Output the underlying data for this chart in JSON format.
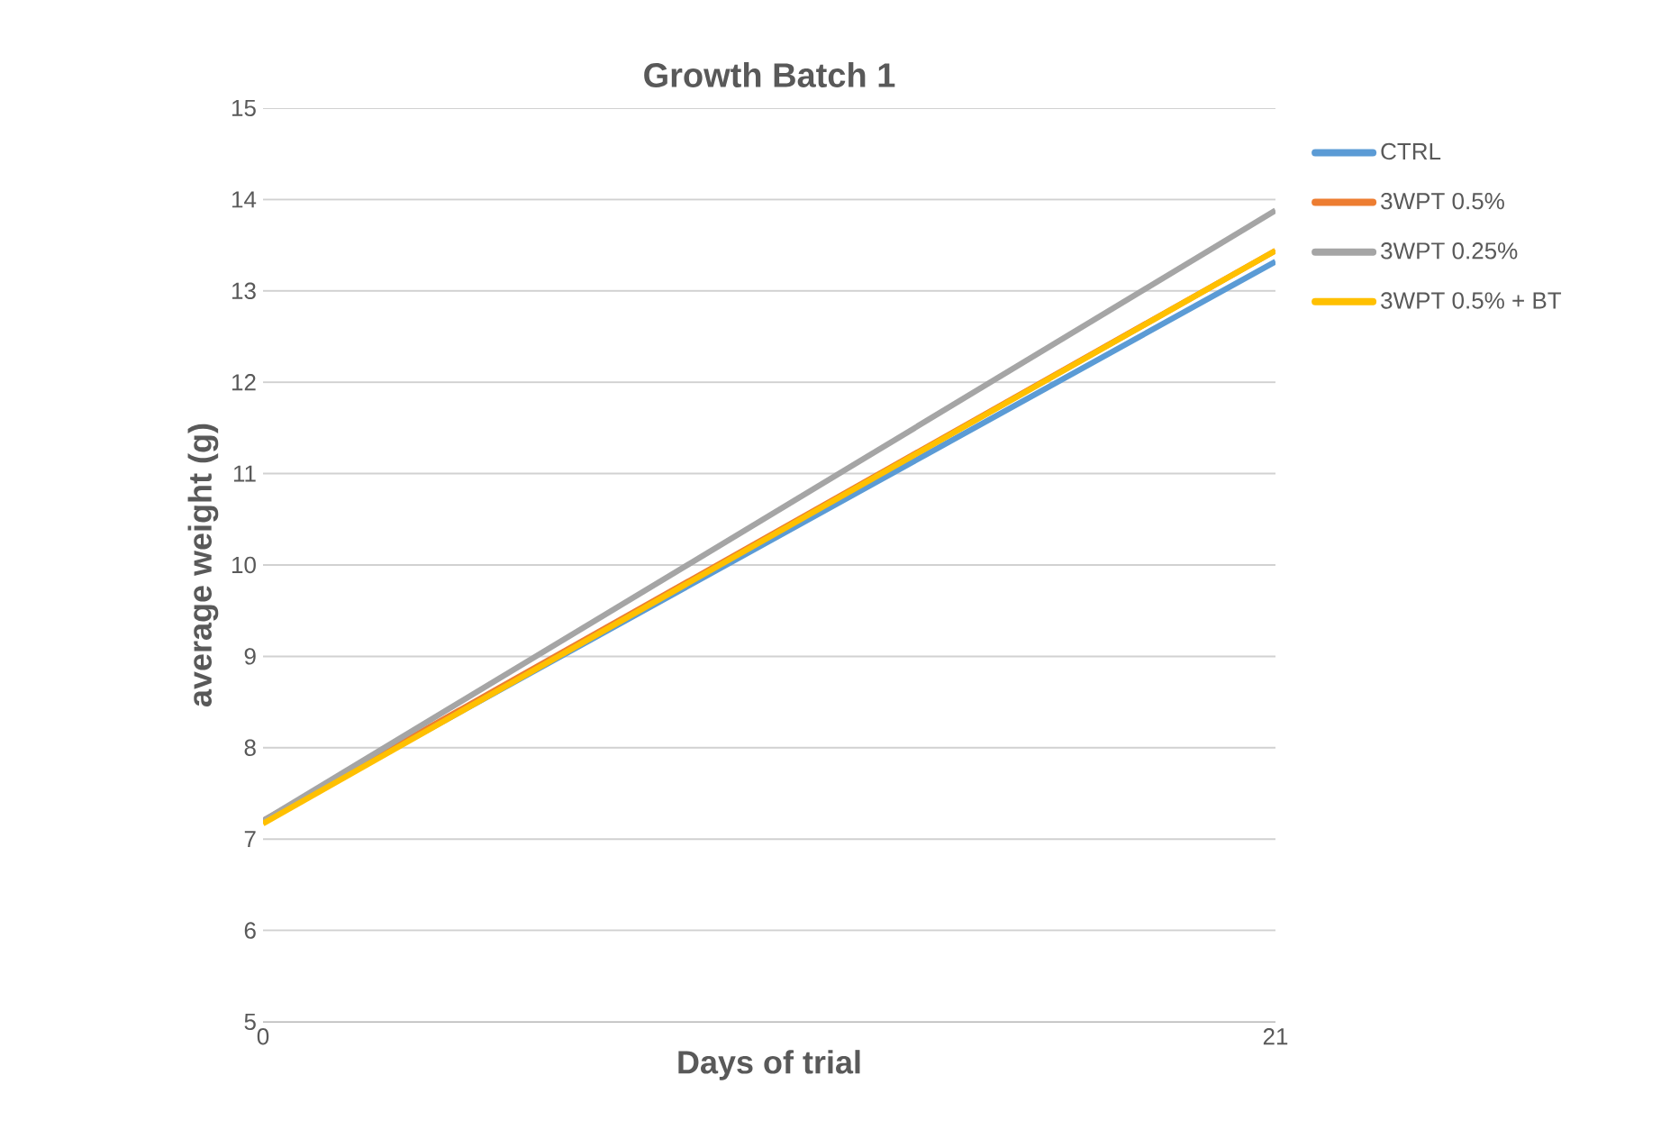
{
  "chart_data": {
    "type": "line",
    "title": "Growth Batch 1",
    "xlabel": "Days of trial",
    "ylabel": "average weight (g)",
    "x": [
      0,
      21
    ],
    "xlim": [
      0,
      21
    ],
    "xticks": [
      0,
      21
    ],
    "series": [
      {
        "name": "CTRL",
        "color": "#5b9bd5",
        "values": [
          7.2,
          13.32
        ]
      },
      {
        "name": "3WPT 0.5%",
        "color": "#ed7d31",
        "values": [
          7.2,
          13.44
        ]
      },
      {
        "name": "3WPT 0.25%",
        "color": "#a5a5a5",
        "values": [
          7.2,
          13.88
        ]
      },
      {
        "name": "3WPT 0.5% + BT",
        "color": "#ffc000",
        "values": [
          7.17,
          13.44
        ]
      }
    ],
    "ylim": [
      5,
      15
    ],
    "yticks": [
      5,
      6,
      7,
      8,
      9,
      10,
      11,
      12,
      13,
      14,
      15
    ],
    "grid": "y",
    "legend": "right",
    "marker": "none",
    "line_style": "solid"
  }
}
